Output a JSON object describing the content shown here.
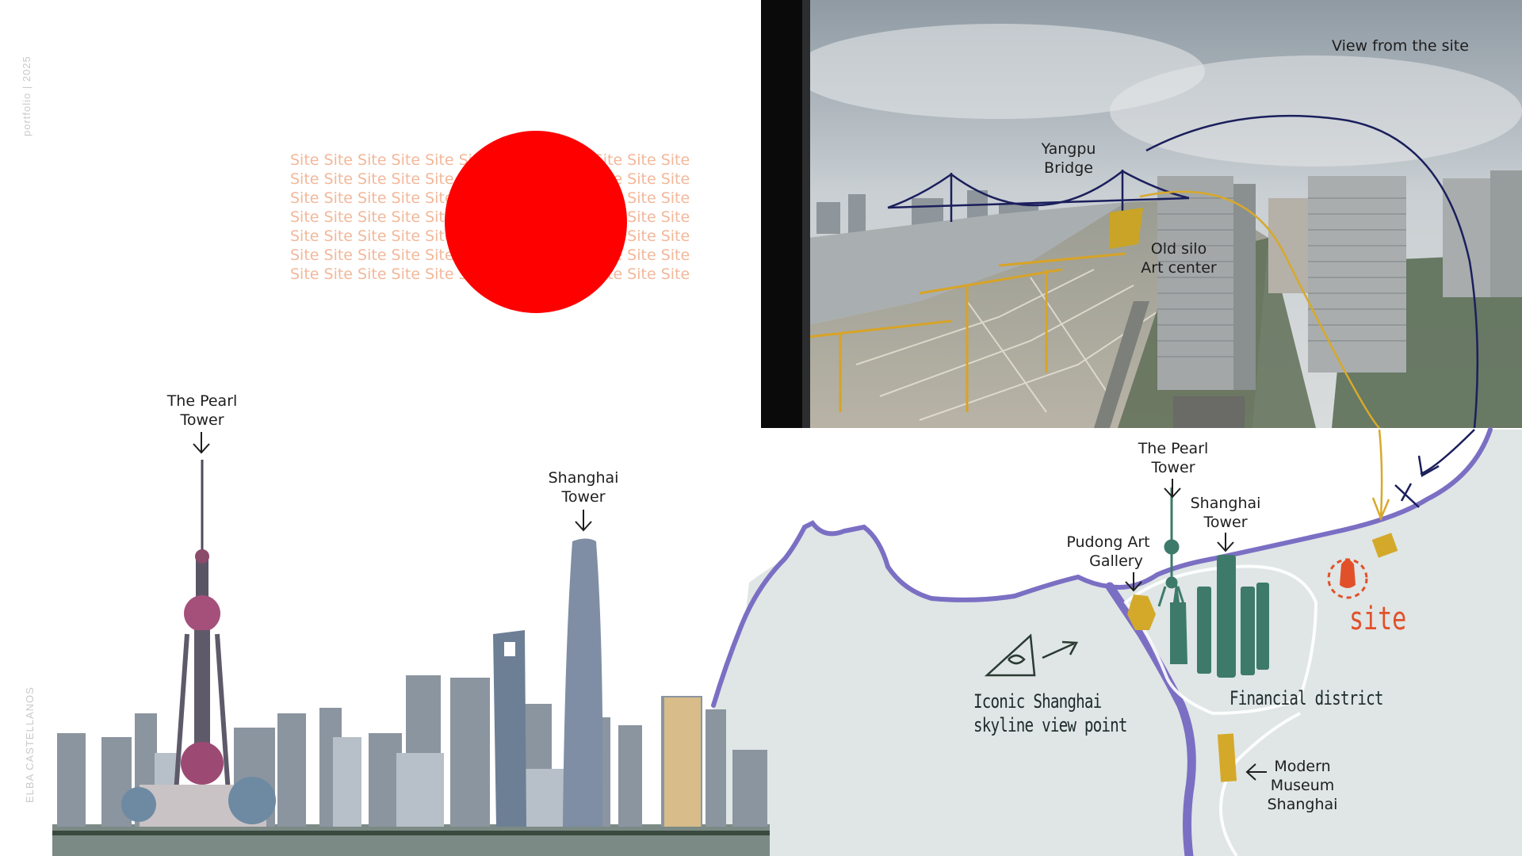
{
  "side": {
    "portfolio": "portfolio | 2025",
    "author": "ELBA CASTELLANOS"
  },
  "site_pattern": {
    "word": "Site",
    "rows": [
      "Site Site Site Site Site Site Site Site Site Site Site Site Site",
      "Site Site Site Site Site Site Site Site Site Site Site Site Site",
      "Site Site Site Site Site Site Site Site Site Site Site Site Site",
      "Site Site Site Site Site Site Site Site Site Site Site Site Site",
      "Site Site Site Site Site Site Site Site Site Site Site Site Site",
      "Site Site Site Site Site Site Site Site Site Site Site Site Site",
      "Site Site Site Site Site Site Site Site Site Site Site Site Site"
    ],
    "color": "#f2b89a",
    "dot_color": "#ff0000"
  },
  "photo": {
    "caption": "View from the site",
    "bridge_line1": "Yangpu",
    "bridge_line2": "Bridge",
    "silo_line1": "Old silo",
    "silo_line2": "Art center"
  },
  "skyline": {
    "pearl_line1": "The Pearl",
    "pearl_line2": "Tower",
    "shanghai_line1": "Shanghai",
    "shanghai_line2": "Tower"
  },
  "map": {
    "pearl_line1": "The Pearl",
    "pearl_line2": "Tower",
    "shanghai_line1": "Shanghai",
    "shanghai_line2": "Tower",
    "gallery_line1": "Pudong Art",
    "gallery_line2": "Gallery",
    "viewpoint_line1": "Iconic Shanghai",
    "viewpoint_line2": "skyline view point",
    "financial": "Financial district",
    "museum_line1": "Modern",
    "museum_line2": "Museum",
    "museum_line3": "Shanghai",
    "site": "site",
    "colors": {
      "land": "#dfe6e5",
      "river": "#7b6fc4",
      "towers": "#3e7a6a",
      "landmarks": "#d4a92a",
      "site": "#e2502a"
    }
  }
}
